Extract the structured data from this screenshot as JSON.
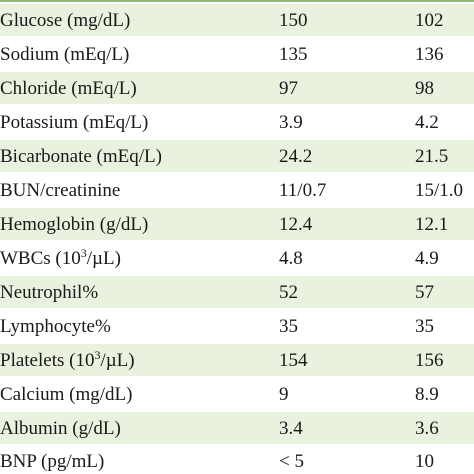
{
  "table": {
    "rows": [
      {
        "label": "Glucose (mg/dL)",
        "v1": "150",
        "v2": "102"
      },
      {
        "label": "Sodium (mEq/L)",
        "v1": "135",
        "v2": "136"
      },
      {
        "label": "Chloride (mEq/L)",
        "v1": "97",
        "v2": "98"
      },
      {
        "label": "Potassium (mEq/L)",
        "v1": "3.9",
        "v2": "4.2"
      },
      {
        "label": "Bicarbonate (mEq/L)",
        "v1": "24.2",
        "v2": "21.5"
      },
      {
        "label": "BUN/creatinine",
        "v1": "11/0.7",
        "v2": "15/1.0"
      },
      {
        "label": "Hemoglobin (g/dL)",
        "v1": "12.4",
        "v2": "12.1"
      },
      {
        "label_pre": "WBCs (10",
        "label_sup": "3",
        "label_post": "/µL)",
        "v1": "4.8",
        "v2": "4.9"
      },
      {
        "label": "Neutrophil%",
        "v1": "52",
        "v2": "57"
      },
      {
        "label": "Lymphocyte%",
        "v1": "35",
        "v2": "35"
      },
      {
        "label_pre": "Platelets (10",
        "label_sup": "3",
        "label_post": "/µL)",
        "v1": "154",
        "v2": "156"
      },
      {
        "label": "Calcium (mg/dL)",
        "v1": "9",
        "v2": "8.9"
      },
      {
        "label": "Albumin (g/dL)",
        "v1": "3.4",
        "v2": "3.6"
      },
      {
        "label": "BNP (pg/mL)",
        "v1": "< 5",
        "v2": "10"
      }
    ]
  },
  "colors": {
    "shade": "#e9f1df",
    "rule": "#8cb870",
    "text": "#1a1a1a"
  }
}
